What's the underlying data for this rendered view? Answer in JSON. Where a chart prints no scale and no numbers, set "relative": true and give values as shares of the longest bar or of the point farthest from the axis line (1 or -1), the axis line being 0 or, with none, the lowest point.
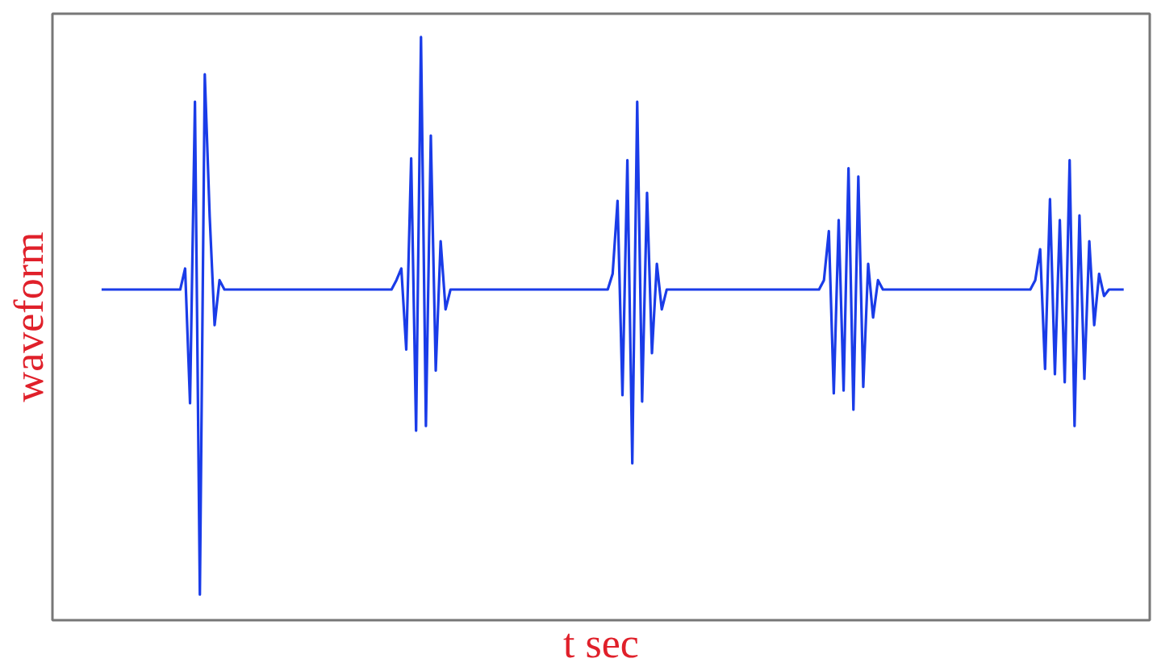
{
  "chart_data": {
    "type": "line",
    "relative": true,
    "xlabel": "t sec",
    "ylabel": "waveform",
    "marker": "none",
    "line_style": "solid",
    "categories": [
      null,
      null,
      null,
      null,
      null,
      null,
      null,
      null,
      null,
      null,
      null,
      null,
      null,
      null,
      null,
      null,
      null,
      null,
      null,
      null,
      null,
      null,
      null,
      null,
      null,
      null,
      null,
      null,
      null,
      null,
      null,
      null,
      null,
      null,
      null,
      null,
      null,
      null,
      null,
      null,
      null,
      null,
      null,
      null,
      null,
      null,
      null,
      null,
      null,
      null,
      null,
      null,
      null,
      null,
      null,
      null,
      null,
      null,
      null,
      null,
      null,
      null,
      null,
      null,
      null,
      null,
      null,
      null,
      null,
      null,
      null,
      null,
      null,
      null,
      null,
      null,
      null,
      null,
      null,
      null,
      null,
      null,
      null,
      null,
      null,
      null,
      null,
      null,
      null,
      null,
      null,
      null,
      null,
      null,
      null,
      null,
      null,
      null,
      null,
      null,
      null,
      null,
      null,
      null,
      null,
      null,
      null,
      null,
      null,
      null,
      null,
      null,
      null,
      null,
      null,
      null,
      null,
      null,
      null,
      null,
      null,
      null,
      null,
      null,
      null,
      null,
      null,
      null,
      null,
      null,
      null,
      null,
      null,
      null,
      null,
      null,
      null,
      null,
      null,
      null,
      null,
      null,
      null,
      null,
      null,
      null,
      null,
      null,
      null,
      null,
      null,
      null,
      null,
      null,
      null,
      null,
      null,
      null,
      null,
      null,
      null,
      null,
      null,
      null,
      null,
      null,
      null,
      null,
      null,
      null,
      null,
      null,
      null,
      null,
      null,
      null,
      null,
      null,
      null,
      null,
      null,
      null,
      null,
      null,
      null,
      null,
      null,
      null,
      null,
      null,
      null,
      null,
      null,
      null,
      null,
      null,
      null,
      null,
      null,
      null,
      null,
      null,
      null,
      null,
      null,
      null,
      null,
      null,
      null
    ],
    "series": [
      {
        "color": "#1a3ce8",
        "values": [
          0.567,
          0.567,
          0.567,
          0.567,
          0.567,
          0.567,
          0.567,
          0.567,
          0.567,
          0.567,
          0.567,
          0.567,
          0.567,
          0.567,
          0.567,
          0.567,
          0.567,
          0.603,
          0.372,
          0.889,
          0.044,
          0.936,
          0.692,
          0.506,
          0.583,
          0.567,
          0.567,
          0.567,
          0.567,
          0.567,
          0.567,
          0.567,
          0.567,
          0.567,
          0.567,
          0.567,
          0.567,
          0.567,
          0.567,
          0.567,
          0.567,
          0.567,
          0.567,
          0.567,
          0.567,
          0.567,
          0.567,
          0.567,
          0.567,
          0.567,
          0.567,
          0.567,
          0.567,
          0.567,
          0.567,
          0.567,
          0.567,
          0.567,
          0.567,
          0.567,
          0.583,
          0.603,
          0.464,
          0.792,
          0.325,
          1.0,
          0.333,
          0.831,
          0.428,
          0.65,
          0.533,
          0.567,
          0.567,
          0.567,
          0.567,
          0.567,
          0.567,
          0.567,
          0.567,
          0.567,
          0.567,
          0.567,
          0.567,
          0.567,
          0.567,
          0.567,
          0.567,
          0.567,
          0.567,
          0.567,
          0.567,
          0.567,
          0.567,
          0.567,
          0.567,
          0.567,
          0.567,
          0.567,
          0.567,
          0.567,
          0.567,
          0.567,
          0.567,
          0.567,
          0.594,
          0.719,
          0.386,
          0.789,
          0.269,
          0.889,
          0.375,
          0.733,
          0.458,
          0.611,
          0.533,
          0.567,
          0.567,
          0.567,
          0.567,
          0.567,
          0.567,
          0.567,
          0.567,
          0.567,
          0.567,
          0.567,
          0.567,
          0.567,
          0.567,
          0.567,
          0.567,
          0.567,
          0.567,
          0.567,
          0.567,
          0.567,
          0.567,
          0.567,
          0.567,
          0.567,
          0.567,
          0.567,
          0.567,
          0.567,
          0.567,
          0.567,
          0.567,
          0.583,
          0.667,
          0.389,
          0.686,
          0.394,
          0.775,
          0.361,
          0.761,
          0.4,
          0.611,
          0.519,
          0.583,
          0.567,
          0.567,
          0.567,
          0.567,
          0.567,
          0.567,
          0.567,
          0.567,
          0.567,
          0.567,
          0.567,
          0.567,
          0.567,
          0.567,
          0.567,
          0.567,
          0.567,
          0.567,
          0.567,
          0.567,
          0.567,
          0.567,
          0.567,
          0.567,
          0.567,
          0.567,
          0.567,
          0.567,
          0.567,
          0.567,
          0.567,
          0.583,
          0.636,
          0.431,
          0.722,
          0.422,
          0.686,
          0.408,
          0.789,
          0.333,
          0.694,
          0.414,
          0.65,
          0.506,
          0.594,
          0.556,
          0.567,
          0.567,
          0.567,
          0.567
        ]
      }
    ]
  }
}
